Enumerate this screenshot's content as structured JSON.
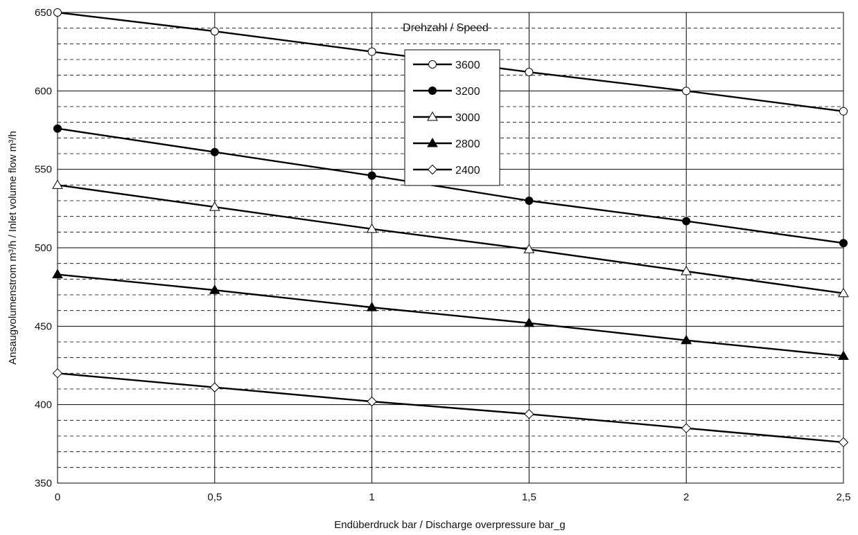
{
  "chart_data": {
    "type": "line",
    "x": [
      0,
      0.5,
      1,
      1.5,
      2,
      2.5
    ],
    "x_tick_labels": [
      "0",
      "0,5",
      "1",
      "1,5",
      "2",
      "2,5"
    ],
    "y_tick_labels": [
      "350",
      "400",
      "450",
      "500",
      "550",
      "600",
      "650"
    ],
    "xlim": [
      0,
      2.5
    ],
    "ylim": [
      350,
      650
    ],
    "grid": {
      "vertical_major": true,
      "horizontal_major_step": 50,
      "horizontal_minor_step": 10,
      "horizontal_minor_style": "dashed"
    },
    "xlabel": "Endüberdruck  bar  /  Discharge overpressure  bar_g",
    "ylabel": "Ansaugvolumenstrom  m³/h   /   Inlet volume flow   m³/h",
    "legend": {
      "title": "Drehzahl / Speed",
      "placement": "top-center"
    },
    "series": [
      {
        "name": "3600",
        "marker": "circle-open",
        "values": [
          650,
          638,
          625,
          612,
          600,
          587
        ]
      },
      {
        "name": "3200",
        "marker": "circle-filled",
        "values": [
          576,
          561,
          546,
          530,
          517,
          503
        ]
      },
      {
        "name": "3000",
        "marker": "triangle-open",
        "values": [
          540,
          526,
          512,
          499,
          485,
          471
        ]
      },
      {
        "name": "2800",
        "marker": "triangle-filled",
        "values": [
          483,
          473,
          462,
          452,
          441,
          431
        ]
      },
      {
        "name": "2400",
        "marker": "diamond-open",
        "values": [
          420,
          411,
          402,
          394,
          385,
          376
        ]
      }
    ],
    "colors": {
      "line": "#000000",
      "grid": "#000000",
      "background": "#ffffff"
    }
  }
}
